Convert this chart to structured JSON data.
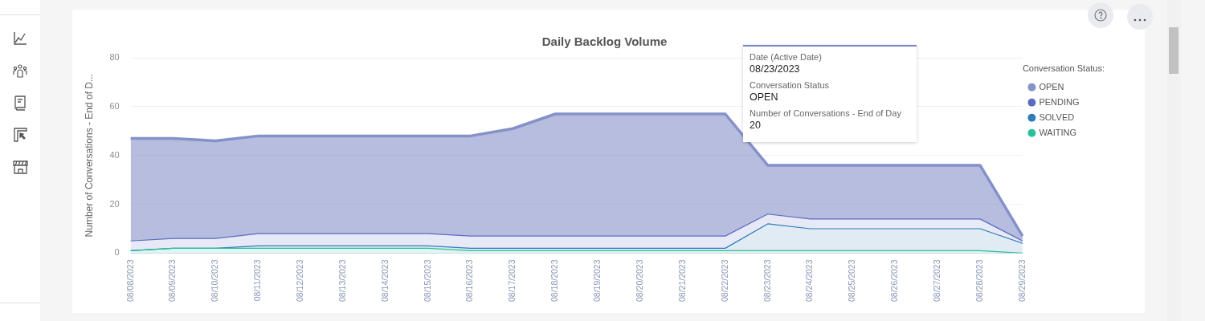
{
  "chart_data": {
    "type": "area",
    "stacked": true,
    "title": "Daily Backlog Volume",
    "ylabel": "Number of Conversations - End of D...",
    "legend_title": "Conversation Status:",
    "legend": "right",
    "grid": "y",
    "marker": "none",
    "categories": [
      "08/08/2023",
      "08/09/2023",
      "08/10/2023",
      "08/11/2023",
      "08/12/2023",
      "08/13/2023",
      "08/14/2023",
      "08/15/2023",
      "08/16/2023",
      "08/17/2023",
      "08/18/2023",
      "08/19/2023",
      "08/20/2023",
      "08/21/2023",
      "08/22/2023",
      "08/23/2023",
      "08/24/2023",
      "08/25/2023",
      "08/26/2023",
      "08/27/2023",
      "08/28/2023",
      "08/29/2023"
    ],
    "ylim": [
      0,
      80
    ],
    "yticks": [
      0,
      20,
      40,
      60,
      80
    ],
    "series": [
      {
        "name": "WAITING",
        "color": "#2bbf9a",
        "values": [
          1,
          2,
          2,
          2,
          2,
          2,
          2,
          2,
          1,
          1,
          1,
          1,
          1,
          1,
          1,
          1,
          1,
          1,
          1,
          1,
          1,
          0
        ]
      },
      {
        "name": "SOLVED",
        "color": "#2f7cb8",
        "values": [
          0,
          0,
          0,
          1,
          1,
          1,
          1,
          1,
          1,
          1,
          1,
          1,
          1,
          1,
          1,
          11,
          9,
          9,
          9,
          9,
          9,
          4
        ]
      },
      {
        "name": "PENDING",
        "color": "#5c6bc0",
        "values": [
          4,
          4,
          4,
          5,
          5,
          5,
          5,
          5,
          5,
          5,
          5,
          5,
          5,
          5,
          5,
          4,
          4,
          4,
          4,
          4,
          4,
          1
        ]
      },
      {
        "name": "OPEN",
        "color": "#8591c9",
        "values": [
          42,
          41,
          40,
          40,
          40,
          40,
          40,
          40,
          41,
          44,
          50,
          50,
          50,
          50,
          50,
          20,
          22,
          22,
          22,
          22,
          22,
          2
        ]
      }
    ],
    "annotations": [
      "Date (Active Date)",
      "08/23/2023",
      "Conversation Status",
      "OPEN",
      "Number of Conversations - End of Day",
      "20"
    ]
  }
}
